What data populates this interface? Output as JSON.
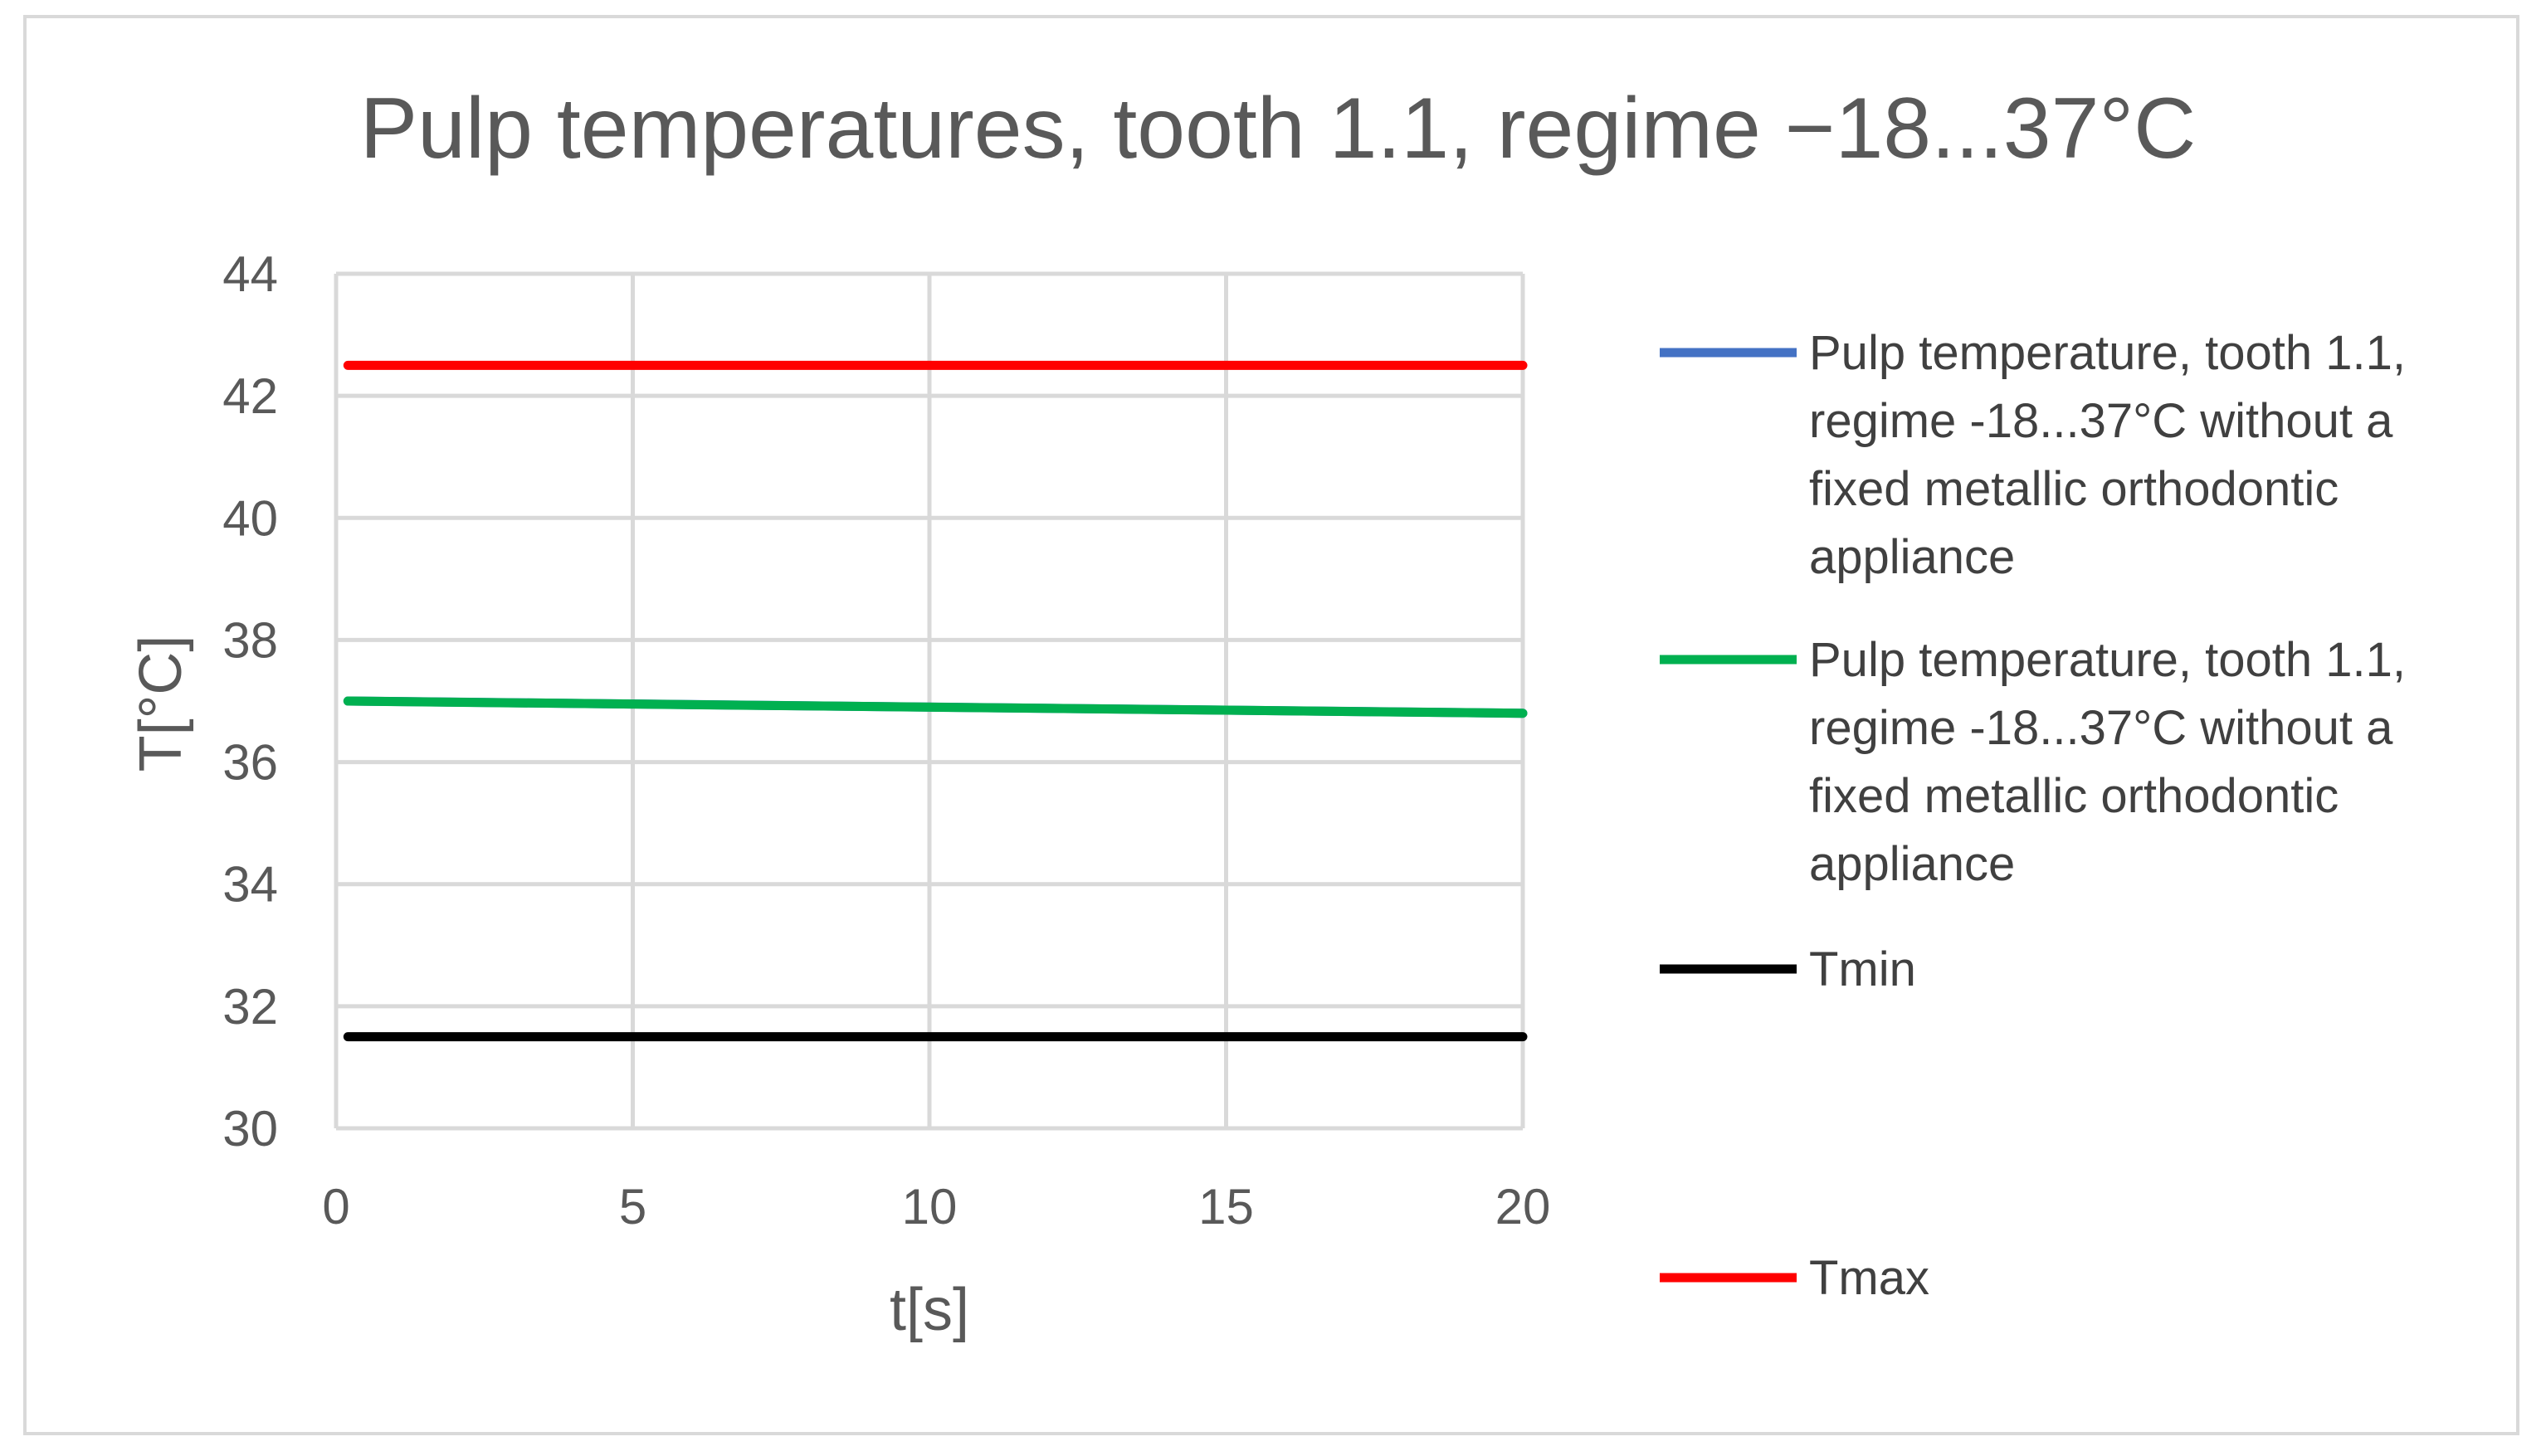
{
  "chart_data": {
    "type": "line",
    "title": "Pulp temperatures, tooth 1.1, regime −18...37°C",
    "xlabel": "t[s]",
    "ylabel": "T[°C]",
    "xlim": [
      0,
      20
    ],
    "ylim": [
      30,
      44
    ],
    "x_ticks": [
      "0",
      "5",
      "10",
      "15",
      "20"
    ],
    "y_ticks": [
      "30",
      "32",
      "34",
      "36",
      "38",
      "40",
      "42",
      "44"
    ],
    "grid": true,
    "legend_position": "right",
    "series": [
      {
        "name": "Pulp temperature, tooth 1.1, regime -18...37°C without a fixed metallic orthodontic appliance",
        "color": "#4472c4",
        "x": [
          0.2,
          20
        ],
        "y": [
          37.0,
          36.8
        ]
      },
      {
        "name": "Pulp temperature, tooth 1.1, regime -18...37°C without a fixed metallic orthodontic appliance",
        "color": "#00b050",
        "x": [
          0.2,
          5,
          10,
          15,
          20
        ],
        "y": [
          37.0,
          36.95,
          36.9,
          36.85,
          36.8
        ]
      },
      {
        "name": "Tmin",
        "color": "#000000",
        "x": [
          0.2,
          20
        ],
        "y": [
          31.5,
          31.5
        ]
      },
      {
        "name": "Tmax",
        "color": "#ff0000",
        "x": [
          0.2,
          20
        ],
        "y": [
          42.5,
          42.5
        ]
      }
    ],
    "legend_lines": [
      [
        "Pulp temperature, tooth 1.1,",
        "regime -18...37°C without a",
        "fixed metallic orthodontic",
        "appliance"
      ],
      [
        "Pulp temperature, tooth 1.1,",
        "regime -18...37°C without a",
        "fixed metallic orthodontic",
        "appliance"
      ],
      [
        "Tmin"
      ],
      [
        "Tmax"
      ]
    ]
  },
  "colors": {
    "grid": "#d9d9d9",
    "text": "#595959",
    "frame": "#d9d9d9"
  }
}
